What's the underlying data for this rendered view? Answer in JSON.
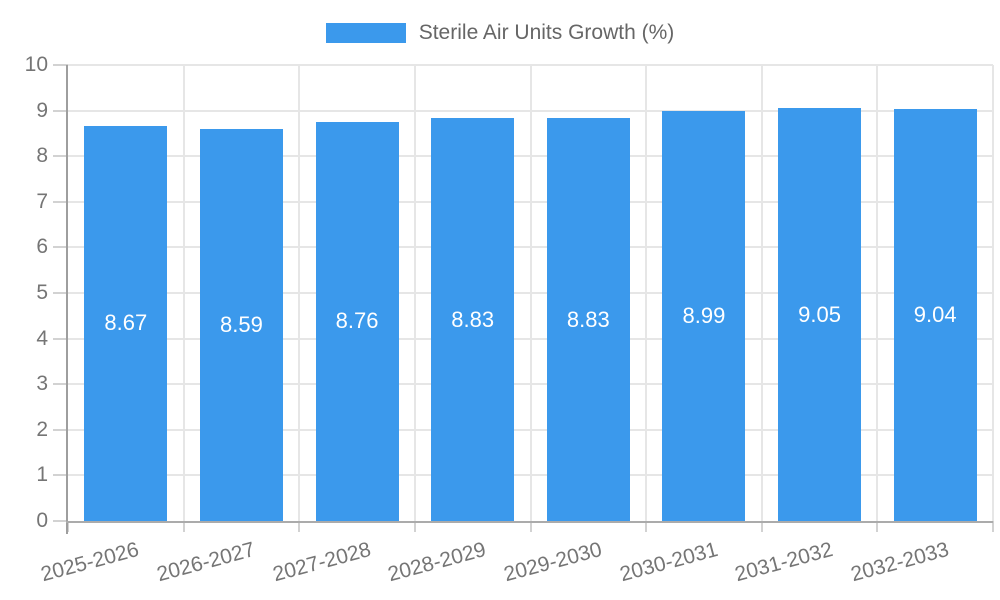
{
  "chart_data": {
    "type": "bar",
    "title": "Sterile Air Units Growth (%)",
    "categories": [
      "2025-2026",
      "2026-2027",
      "2027-2028",
      "2028-2029",
      "2029-2030",
      "2030-2031",
      "2031-2032",
      "2032-2033"
    ],
    "series": [
      {
        "name": "Sterile Air Units Growth (%)",
        "values": [
          8.67,
          8.59,
          8.76,
          8.83,
          8.83,
          8.99,
          9.05,
          9.04
        ]
      }
    ],
    "value_labels": [
      "8.67",
      "8.59",
      "8.76",
      "8.83",
      "8.83",
      "8.99",
      "9.05",
      "9.04"
    ],
    "xlabel": "",
    "ylabel": "",
    "ylim": [
      0,
      10
    ],
    "ytick_labels": [
      "0",
      "1",
      "2",
      "3",
      "4",
      "5",
      "6",
      "7",
      "8",
      "9",
      "10"
    ],
    "grid": true,
    "legend_position": "top",
    "bar_color": "#3b99ec"
  },
  "colors": {
    "grid": "#e6e6e6",
    "tick": "#d2d2d2",
    "axis_line": "#ababab",
    "y_axis_line": "#9e9e9e",
    "axis_text": "#757575",
    "title_text": "#666666",
    "bar_label_text": "#ffffff"
  }
}
